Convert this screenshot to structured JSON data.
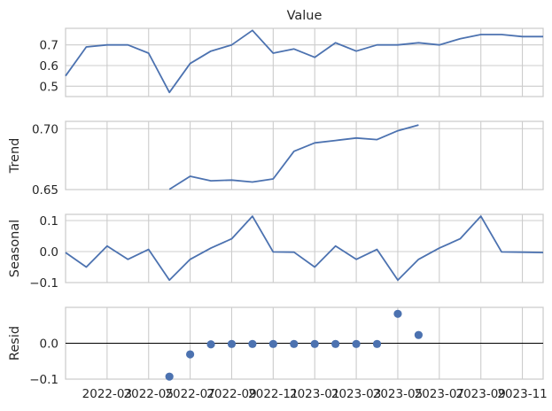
{
  "chart_data": {
    "type": "seasonal-decomposition",
    "x_tick_labels": [
      "2022-03",
      "2022-05",
      "2022-07",
      "2022-09",
      "2022-11",
      "2023-01",
      "2023-03",
      "2023-05",
      "2023-07",
      "2023-09",
      "2023-11"
    ],
    "x": [
      "2022-01",
      "2022-02",
      "2022-03",
      "2022-04",
      "2022-05",
      "2022-06",
      "2022-07",
      "2022-08",
      "2022-09",
      "2022-10",
      "2022-11",
      "2022-12",
      "2023-01",
      "2023-02",
      "2023-03",
      "2023-04",
      "2023-05",
      "2023-06",
      "2023-07",
      "2023-08",
      "2023-09",
      "2023-10",
      "2023-11",
      "2023-12"
    ],
    "xlim": [
      "2022-01",
      "2023-12"
    ],
    "grid": true,
    "colors": {
      "series": "#4c72b0",
      "grid": "#cccccc",
      "zero_line": "#000000"
    },
    "panels": [
      {
        "title": "Value",
        "ylabel": "",
        "kind": "line",
        "ylim": [
          0.45,
          0.78
        ],
        "yticks": [
          0.5,
          0.6,
          0.7
        ],
        "ytick_labels": [
          "0.5",
          "0.6",
          "0.7"
        ],
        "values": [
          0.55,
          0.69,
          0.7,
          0.7,
          0.66,
          0.47,
          0.61,
          0.67,
          0.7,
          0.77,
          0.66,
          0.68,
          0.64,
          0.71,
          0.67,
          0.7,
          0.7,
          0.71,
          0.7,
          0.73,
          0.75,
          0.75,
          0.74,
          0.74
        ]
      },
      {
        "title": "",
        "ylabel": "Trend",
        "kind": "line",
        "ylim": [
          0.65,
          0.706
        ],
        "yticks": [
          0.65,
          0.7
        ],
        "ytick_labels": [
          "0.65",
          "0.70"
        ],
        "values": [
          null,
          null,
          null,
          null,
          null,
          0.6502,
          0.6609,
          0.6572,
          0.6578,
          0.6562,
          0.6587,
          0.6814,
          0.6883,
          0.6903,
          0.6923,
          0.691,
          0.6983,
          0.703,
          null,
          null,
          null,
          null,
          null,
          null
        ]
      },
      {
        "title": "",
        "ylabel": "Seasonal",
        "kind": "line",
        "ylim": [
          -0.1,
          0.12
        ],
        "yticks": [
          -0.1,
          0.0,
          0.1
        ],
        "ytick_labels": [
          "−0.1",
          "0.0",
          "0.1"
        ],
        "values": [
          -0.003,
          -0.05,
          0.018,
          -0.025,
          0.007,
          -0.092,
          -0.025,
          0.011,
          0.041,
          0.114,
          -0.001,
          -0.002,
          -0.05,
          0.018,
          -0.025,
          0.007,
          -0.092,
          -0.025,
          0.011,
          0.041,
          0.114,
          -0.001,
          -0.002,
          -0.003
        ]
      },
      {
        "title": "",
        "ylabel": "Resid",
        "kind": "scatter",
        "zero_line": true,
        "ylim": [
          -0.1,
          0.1
        ],
        "yticks": [
          -0.1,
          0.0
        ],
        "ytick_labels": [
          "−0.1",
          "0.0"
        ],
        "values": [
          null,
          null,
          null,
          null,
          null,
          -0.093,
          -0.031,
          -0.003,
          -0.002,
          -0.002,
          -0.002,
          -0.002,
          -0.002,
          -0.002,
          -0.002,
          -0.002,
          0.082,
          0.023,
          null,
          null,
          null,
          null,
          null,
          null
        ]
      }
    ]
  }
}
